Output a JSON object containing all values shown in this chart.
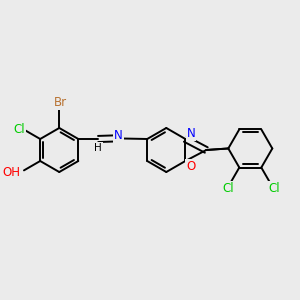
{
  "background_color": "#ebebeb",
  "atom_colors": {
    "C": "#000000",
    "N": "#0000ff",
    "O": "#ff0000",
    "Cl": "#00cc00",
    "Br": "#b87333",
    "H": "#000000"
  },
  "bond_color": "#000000",
  "bond_width": 1.4,
  "font_size": 8.5,
  "fig_width": 3.0,
  "fig_height": 3.0,
  "dpi": 100
}
